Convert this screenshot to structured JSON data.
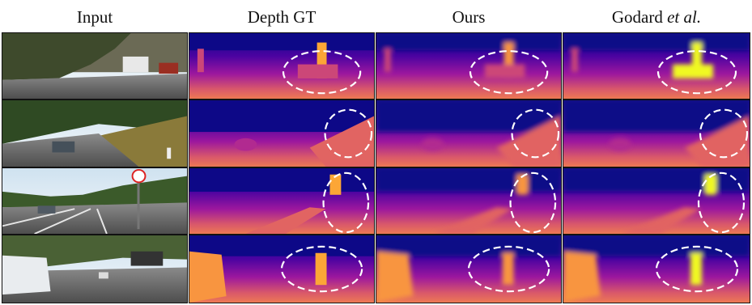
{
  "figure": {
    "columns": [
      {
        "id": "input",
        "label": "Input",
        "italic_suffix": ""
      },
      {
        "id": "gt",
        "label": "Depth GT",
        "italic_suffix": ""
      },
      {
        "id": "ours",
        "label": "Ours",
        "italic_suffix": ""
      },
      {
        "id": "godard",
        "label": "Godard ",
        "italic_suffix": "et al."
      }
    ],
    "rows": 4,
    "colors": {
      "depth_far": "#0d0887",
      "depth_mid": "#9c179e",
      "depth_near": "#ed7953",
      "depth_closest": "#f0f921",
      "ellipse": "#ffffff"
    }
  }
}
